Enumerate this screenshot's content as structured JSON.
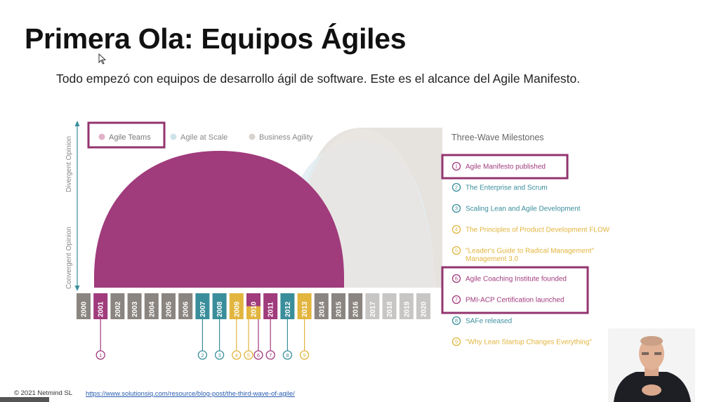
{
  "slide": {
    "title": "Primera Ola: Equipos Ágiles",
    "subtitle": "Todo empezó con equipos de desarrollo ágil de software. Este es el alcance del Agile Manifesto."
  },
  "diagram": {
    "legend": [
      "Agile Teams",
      "Agile at Scale",
      "Business Agility"
    ],
    "y_axis": {
      "top_label": "Divergent Opinion",
      "bottom_label": "Convergent Opinion"
    },
    "years": [
      "2000",
      "2001",
      "2002",
      "2003",
      "2004",
      "2005",
      "2006",
      "2007",
      "2008",
      "2009",
      "2010",
      "2011",
      "2012",
      "2013",
      "2014",
      "2015",
      "2016",
      "2017",
      "2018",
      "2019",
      "2020"
    ],
    "markers": [
      {
        "num": "1",
        "year": "2001",
        "color": "#a03b7c"
      },
      {
        "num": "2",
        "year": "2007",
        "color": "#3a8e9b"
      },
      {
        "num": "3",
        "year": "2008",
        "color": "#3a8e9b"
      },
      {
        "num": "4",
        "year": "2009",
        "color": "#e2b53f"
      },
      {
        "num": "5",
        "year": "2010",
        "color": "#e2b53f"
      },
      {
        "num": "6",
        "year": "2010",
        "color": "#a03b7c"
      },
      {
        "num": "7",
        "year": "2011",
        "color": "#a03b7c"
      },
      {
        "num": "8",
        "year": "2012",
        "color": "#3a8e9b"
      },
      {
        "num": "9",
        "year": "2013",
        "color": "#e2b53f"
      }
    ],
    "milestones_title": "Three-Wave Milestones",
    "milestones": [
      {
        "num": "1",
        "text": "Agile Manifesto published",
        "color": "#a03b7c"
      },
      {
        "num": "2",
        "text": "The Enterprise and Scrum",
        "color": "#3a8e9b"
      },
      {
        "num": "3",
        "text": "Scaling Lean and Agile Development",
        "color": "#3a8e9b"
      },
      {
        "num": "4",
        "text": "The Principles of Product Development FLOW",
        "color": "#e2b53f"
      },
      {
        "num": "5",
        "text": "\"Leader's Guide to Radical Management\"",
        "text2": "Management 3.0",
        "color": "#e2b53f"
      },
      {
        "num": "6",
        "text": "Agile Coaching Institute founded",
        "color": "#a03b7c"
      },
      {
        "num": "7",
        "text": "PMI-ACP Certification launched",
        "color": "#a03b7c"
      },
      {
        "num": "8",
        "text": "SAFe released",
        "color": "#3a8e9b"
      },
      {
        "num": "9",
        "text": "\"Why Lean Startup Changes Everything\"",
        "color": "#e2b53f"
      }
    ]
  },
  "footer": {
    "copyright": "© 2021 Netmind SL",
    "source_url": "https://www.solutionsiq.com/resource/blog-post/the-third-wave-of-agile/"
  },
  "colors": {
    "agile_teams": "#a03b7c",
    "agile_at_scale": "#3a8e9b",
    "business_agility": "#e2b53f",
    "highlight_box": "#93346f"
  }
}
